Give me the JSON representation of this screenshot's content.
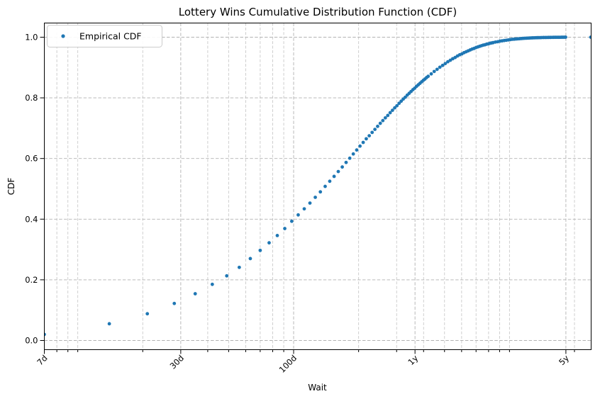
{
  "chart_data": {
    "type": "scatter",
    "title": "Lottery Wins Cumulative Distribution Function (CDF)",
    "xlabel": "Wait",
    "ylabel": "CDF",
    "x_scale": "log",
    "x_unit": "days",
    "xlim": [
      7,
      2389
    ],
    "ylim": [
      -0.0304,
      1.0467
    ],
    "grid": "both-dashed",
    "legend_position": "upper-left",
    "x_major_ticks": [
      {
        "value": 7,
        "label": "7d"
      },
      {
        "value": 30,
        "label": "30d"
      },
      {
        "value": 100,
        "label": "100d"
      },
      {
        "value": 365,
        "label": "1y"
      },
      {
        "value": 1825,
        "label": "5y"
      }
    ],
    "x_minor_ticks": [
      8,
      9,
      10,
      20,
      40,
      50,
      60,
      70,
      80,
      90,
      200,
      300,
      400,
      500,
      600,
      700,
      800,
      900,
      1000,
      2000
    ],
    "y_ticks": [
      {
        "value": 0.0,
        "label": "0.0"
      },
      {
        "value": 0.2,
        "label": "0.2"
      },
      {
        "value": 0.4,
        "label": "0.4"
      },
      {
        "value": 0.6,
        "label": "0.6"
      },
      {
        "value": 0.8,
        "label": "0.8"
      },
      {
        "value": 1.0,
        "label": "1.0"
      }
    ],
    "series": [
      {
        "name": "Empirical CDF",
        "marker": "point",
        "color": "#1f77b4",
        "points": [
          [
            7,
            0.02
          ],
          [
            14,
            0.055
          ],
          [
            21,
            0.088
          ],
          [
            28,
            0.122
          ],
          [
            35,
            0.154
          ],
          [
            42,
            0.185
          ],
          [
            49,
            0.213
          ],
          [
            56,
            0.241
          ],
          [
            63,
            0.27
          ],
          [
            70,
            0.297
          ],
          [
            77,
            0.322
          ],
          [
            84,
            0.346
          ],
          [
            91,
            0.369
          ],
          [
            98,
            0.393
          ],
          [
            105,
            0.414
          ],
          [
            112,
            0.434
          ],
          [
            119,
            0.453
          ],
          [
            126,
            0.472
          ],
          [
            133,
            0.49
          ],
          [
            140,
            0.508
          ],
          [
            147,
            0.525
          ],
          [
            154,
            0.541
          ],
          [
            161,
            0.557
          ],
          [
            168,
            0.572
          ],
          [
            175,
            0.587
          ],
          [
            182,
            0.601
          ],
          [
            189,
            0.615
          ],
          [
            196,
            0.628
          ],
          [
            203,
            0.641
          ],
          [
            210,
            0.653
          ],
          [
            217,
            0.665
          ],
          [
            224,
            0.675
          ],
          [
            231,
            0.686
          ],
          [
            238,
            0.696
          ],
          [
            245,
            0.706
          ],
          [
            252,
            0.716
          ],
          [
            259,
            0.725
          ],
          [
            266,
            0.734
          ],
          [
            273,
            0.742
          ],
          [
            280,
            0.751
          ],
          [
            287,
            0.759
          ],
          [
            294,
            0.767
          ],
          [
            301,
            0.774
          ],
          [
            308,
            0.782
          ],
          [
            315,
            0.789
          ],
          [
            322,
            0.796
          ],
          [
            329,
            0.802
          ],
          [
            336,
            0.809
          ],
          [
            343,
            0.815
          ],
          [
            350,
            0.821
          ],
          [
            357,
            0.827
          ],
          [
            364,
            0.832
          ],
          [
            371,
            0.838
          ],
          [
            378,
            0.843
          ],
          [
            385,
            0.848
          ],
          [
            392,
            0.853
          ],
          [
            399,
            0.858
          ],
          [
            406,
            0.862
          ],
          [
            413,
            0.867
          ],
          [
            420,
            0.871
          ],
          [
            434,
            0.879
          ],
          [
            448,
            0.887
          ],
          [
            462,
            0.894
          ],
          [
            476,
            0.901
          ],
          [
            490,
            0.907
          ],
          [
            504,
            0.913
          ],
          [
            518,
            0.919
          ],
          [
            532,
            0.924
          ],
          [
            546,
            0.929
          ],
          [
            560,
            0.933
          ],
          [
            574,
            0.938
          ],
          [
            588,
            0.942
          ],
          [
            602,
            0.945
          ],
          [
            616,
            0.949
          ],
          [
            630,
            0.952
          ],
          [
            644,
            0.955
          ],
          [
            658,
            0.958
          ],
          [
            672,
            0.961
          ],
          [
            686,
            0.963
          ],
          [
            700,
            0.966
          ],
          [
            714,
            0.968
          ],
          [
            728,
            0.97
          ],
          [
            742,
            0.972
          ],
          [
            756,
            0.974
          ],
          [
            770,
            0.975
          ],
          [
            784,
            0.977
          ],
          [
            798,
            0.978
          ],
          [
            812,
            0.98
          ],
          [
            826,
            0.981
          ],
          [
            840,
            0.982
          ],
          [
            861,
            0.984
          ],
          [
            882,
            0.985
          ],
          [
            903,
            0.987
          ],
          [
            924,
            0.988
          ],
          [
            945,
            0.989
          ],
          [
            966,
            0.99
          ],
          [
            987,
            0.991
          ],
          [
            1008,
            0.992
          ],
          [
            1029,
            0.993
          ],
          [
            1050,
            0.9934
          ],
          [
            1071,
            0.994
          ],
          [
            1092,
            0.9946
          ],
          [
            1113,
            0.995
          ],
          [
            1134,
            0.9956
          ],
          [
            1155,
            0.996
          ],
          [
            1176,
            0.9964
          ],
          [
            1197,
            0.9967
          ],
          [
            1218,
            0.997
          ],
          [
            1239,
            0.9973
          ],
          [
            1260,
            0.9976
          ],
          [
            1281,
            0.9978
          ],
          [
            1302,
            0.998
          ],
          [
            1323,
            0.9982
          ],
          [
            1344,
            0.9984
          ],
          [
            1365,
            0.9985
          ],
          [
            1386,
            0.9986
          ],
          [
            1407,
            0.9988
          ],
          [
            1435,
            0.9989
          ],
          [
            1463,
            0.999
          ],
          [
            1491,
            0.9991
          ],
          [
            1519,
            0.9992
          ],
          [
            1547,
            0.9993
          ],
          [
            1575,
            0.9994
          ],
          [
            1603,
            0.9995
          ],
          [
            1631,
            0.9996
          ],
          [
            1659,
            0.9996
          ],
          [
            1687,
            0.9997
          ],
          [
            1715,
            0.9997
          ],
          [
            1743,
            0.9998
          ],
          [
            1771,
            0.9998
          ],
          [
            1799,
            0.9999
          ],
          [
            1820,
            1.0
          ],
          [
            2380,
            1.0
          ]
        ]
      }
    ]
  }
}
